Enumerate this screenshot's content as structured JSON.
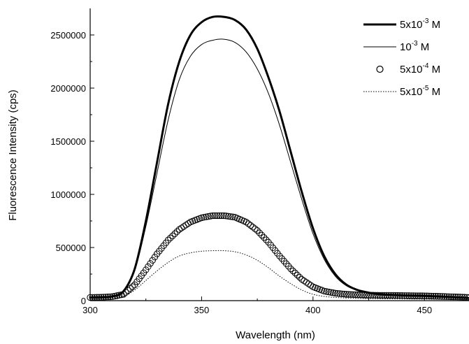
{
  "chart_data": {
    "type": "line",
    "title": "",
    "xlabel": "Wavelength (nm)",
    "ylabel": "Fluorescence Intensity (cps)",
    "xlim": [
      300,
      470
    ],
    "ylim": [
      0,
      2750000
    ],
    "x_ticks": [
      300,
      350,
      400,
      450
    ],
    "x_tick_labels": [
      "300",
      "350",
      "400",
      "450"
    ],
    "y_ticks": [
      0,
      500000,
      1000000,
      1500000,
      2000000,
      2500000
    ],
    "y_tick_labels": [
      "0",
      "500000",
      "1000000",
      "1500000",
      "2000000",
      "2500000"
    ],
    "grid": false,
    "legend_position": "top-right",
    "legend": [
      {
        "base": "5x10",
        "exp": "-3",
        "unit": " M"
      },
      {
        "base": "10",
        "exp": "-3",
        "unit": " M"
      },
      {
        "base": "5x10",
        "exp": "-4",
        "unit": " M"
      },
      {
        "base": "5x10",
        "exp": "-5",
        "unit": " M"
      }
    ],
    "x": [
      300,
      305,
      310,
      315,
      320,
      325,
      330,
      335,
      340,
      345,
      350,
      355,
      360,
      365,
      370,
      375,
      380,
      385,
      390,
      395,
      400,
      405,
      410,
      415,
      420,
      425,
      430,
      435,
      440,
      445,
      450,
      455,
      460,
      465,
      470
    ],
    "series": [
      {
        "style": "thick-line",
        "values": [
          30000,
          32000,
          40000,
          90000,
          300000,
          750000,
          1300000,
          1850000,
          2250000,
          2500000,
          2620000,
          2670000,
          2670000,
          2640000,
          2550000,
          2370000,
          2100000,
          1780000,
          1400000,
          1020000,
          680000,
          420000,
          250000,
          150000,
          100000,
          75000,
          60000,
          55000,
          50000,
          48000,
          45000,
          40000,
          35000,
          30000,
          25000
        ]
      },
      {
        "style": "thin-line",
        "values": [
          30000,
          32000,
          40000,
          85000,
          280000,
          700000,
          1200000,
          1700000,
          2080000,
          2300000,
          2410000,
          2450000,
          2460000,
          2430000,
          2340000,
          2180000,
          1950000,
          1650000,
          1300000,
          950000,
          630000,
          390000,
          230000,
          140000,
          95000,
          72000,
          58000,
          52000,
          48000,
          46000,
          44000,
          40000,
          35000,
          30000,
          25000
        ]
      },
      {
        "style": "circles",
        "values": [
          30000,
          32000,
          38000,
          60000,
          150000,
          290000,
          440000,
          570000,
          670000,
          740000,
          780000,
          800000,
          800000,
          785000,
          740000,
          660000,
          550000,
          420000,
          300000,
          200000,
          130000,
          90000,
          70000,
          60000,
          55000,
          52000,
          50000,
          50000,
          48000,
          46000,
          45000,
          42000,
          38000,
          35000,
          30000
        ]
      },
      {
        "style": "dotted-line",
        "values": [
          20000,
          22000,
          25000,
          40000,
          100000,
          190000,
          280000,
          360000,
          420000,
          450000,
          465000,
          470000,
          470000,
          460000,
          430000,
          380000,
          310000,
          230000,
          160000,
          100000,
          60000,
          40000,
          30000,
          25000,
          22000,
          20000,
          18000,
          17000,
          16000,
          15000,
          14000,
          13000,
          12000,
          11000,
          10000
        ]
      }
    ]
  }
}
